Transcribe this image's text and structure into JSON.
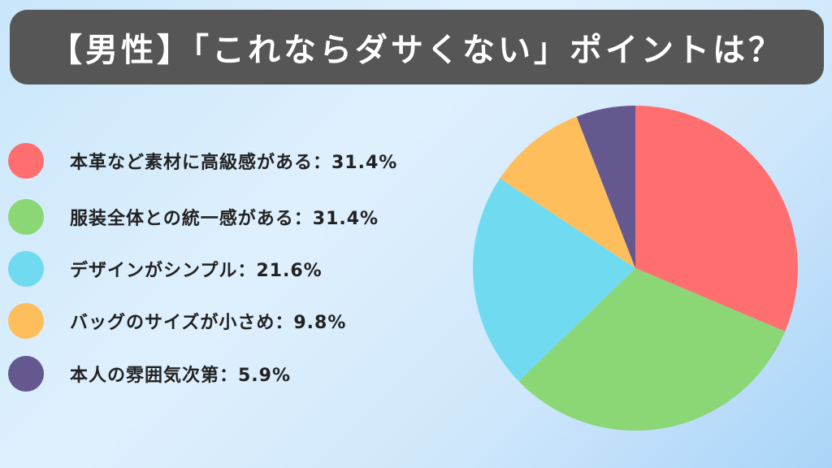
{
  "title": "【男性】「これならダサくない」ポイントは？",
  "colors": {
    "background": "#cfe7fb",
    "title_bar": "#565656",
    "title_text": "#ffffff"
  },
  "legend": [
    {
      "label": "本革など素材に高級感がある：31.4%",
      "color": "#ff6f6f"
    },
    {
      "label": "服装全体との統一感がある：31.4%",
      "color": "#8bd675"
    },
    {
      "label": "デザインがシンプル：21.6%",
      "color": "#70dbf0"
    },
    {
      "label": "バッグのサイズが小さめ：9.8%",
      "color": "#ffbe5c"
    },
    {
      "label": "本人の雰囲気次第：5.9%",
      "color": "#64588e"
    }
  ],
  "chart_data": {
    "type": "pie",
    "title": "【男性】「これならダサくない」ポイントは？",
    "categories": [
      "本革など素材に高級感がある",
      "服装全体との統一感がある",
      "デザインがシンプル",
      "バッグのサイズが小さめ",
      "本人の雰囲気次第"
    ],
    "values": [
      31.4,
      31.4,
      21.6,
      9.8,
      5.9
    ],
    "unit": "%",
    "colors": [
      "#ff6f6f",
      "#8bd675",
      "#70dbf0",
      "#ffbe5c",
      "#64588e"
    ],
    "start_angle": "12 o'clock",
    "direction": "clockwise",
    "legend_position": "left"
  }
}
